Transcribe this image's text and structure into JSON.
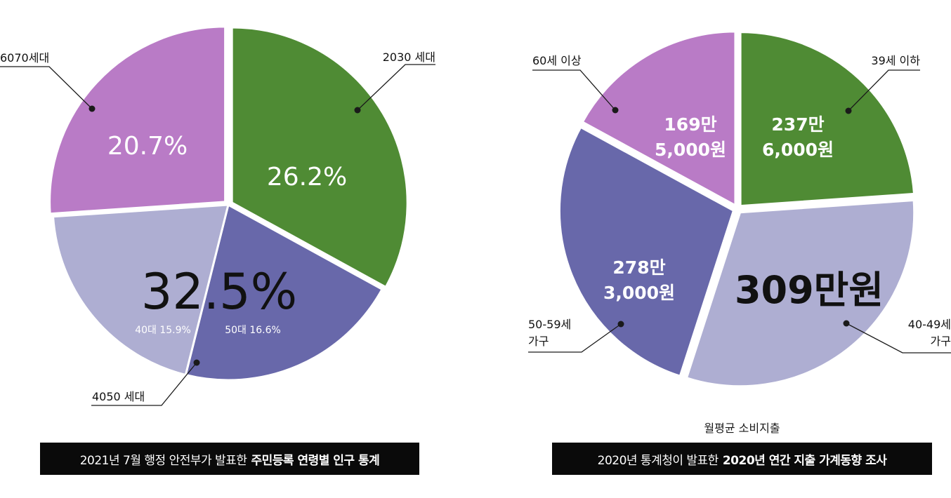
{
  "colors": {
    "green": "#4f8b34",
    "blue": "#6868aa",
    "lavender": "#aeaed2",
    "purple": "#b97bc6",
    "leader": "#1a1a1a",
    "caption_bg": "#0a0a0a"
  },
  "chart_data": [
    {
      "type": "pie",
      "title": "",
      "slices": [
        {
          "label": "2030 세대",
          "value": 26.2,
          "value_label": "26.2%",
          "color": "#4f8b34"
        },
        {
          "label": "50대",
          "value": 16.6,
          "value_label": "50대 16.6%",
          "color": "#6868aa"
        },
        {
          "label": "40대",
          "value": 15.9,
          "value_label": "40대 15.9%",
          "color": "#aeaed2"
        },
        {
          "label": "6070세대",
          "value": 20.7,
          "value_label": "20.7%",
          "color": "#b97bc6"
        }
      ],
      "group_labels": [
        {
          "label": "4050 세대",
          "value_label": "32.5%"
        }
      ],
      "caption_regular": "2021년 7월 행정 안전부가 발표한",
      "caption_bold": "주민등록 연령별 인구 통계"
    },
    {
      "type": "pie",
      "title": "",
      "subtitle": "월평균 소비지출",
      "slices": [
        {
          "label": "39세 이하",
          "value": 2376000,
          "value_label": "237만\n6,000원",
          "color": "#4f8b34"
        },
        {
          "label": "40-49세\n가구",
          "value": 3090000,
          "value_label": "309만원",
          "color": "#aeaed2"
        },
        {
          "label": "50-59세\n가구",
          "value": 2783000,
          "value_label": "278만\n3,000원",
          "color": "#6868aa"
        },
        {
          "label": "60세 이상",
          "value": 1695000,
          "value_label": "169만\n5,000원",
          "color": "#b97bc6"
        }
      ],
      "caption_regular": "2020년 통계청이 발표한",
      "caption_bold": "2020년 연간 지출 가계동향 조사"
    }
  ]
}
